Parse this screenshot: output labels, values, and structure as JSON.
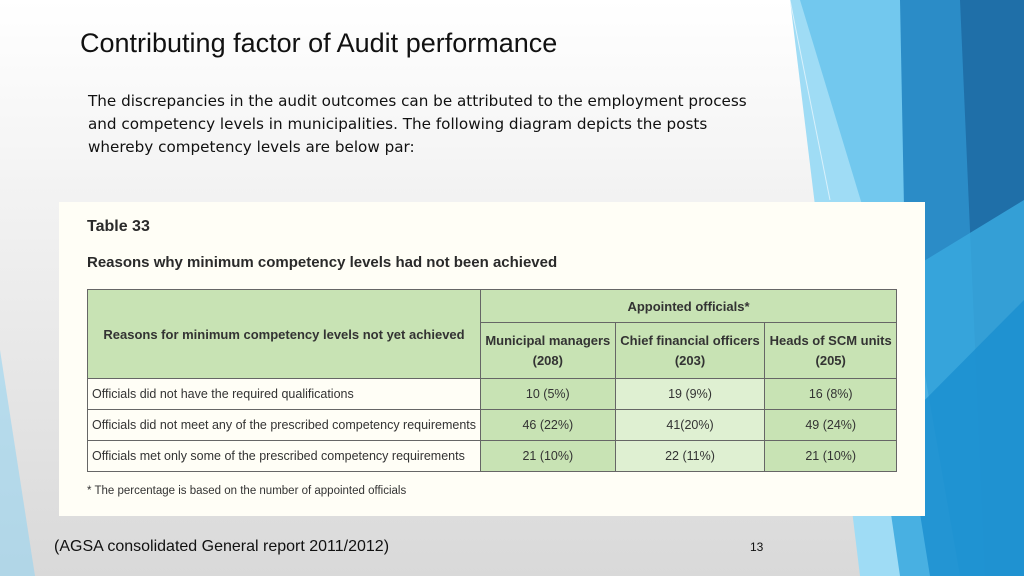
{
  "slide": {
    "title": "Contributing factor of  Audit performance",
    "intro": "The discrepancies in the audit outcomes can be attributed to the employment process and competency levels in municipalities. The following diagram depicts the posts whereby competency levels are below par:",
    "source": "(AGSA consolidated General report 2011/2012)",
    "page_number": "13"
  },
  "table": {
    "label": "Table 33",
    "caption": "Reasons why minimum competency levels had not been achieved",
    "reason_header": "Reasons for minimum competency levels not yet achieved",
    "group_header": "Appointed officials*",
    "columns": [
      {
        "name": "Municipal managers",
        "count": "(208)"
      },
      {
        "name": "Chief financial officers",
        "count": "(203)"
      },
      {
        "name": "Heads of SCM units",
        "count": "(205)"
      }
    ],
    "rows": [
      {
        "reason": "Officials did not have the required qualifications",
        "values": [
          "10 (5%)",
          "19 (9%)",
          "16 (8%)"
        ]
      },
      {
        "reason": "Officials did not meet any of the prescribed competency requirements",
        "values": [
          "46 (22%)",
          "41(20%)",
          "49 (24%)"
        ]
      },
      {
        "reason": "Officials met only some of the prescribed competency requirements",
        "values": [
          "21 (10%)",
          "22 (11%)",
          "21 (10%)"
        ]
      }
    ],
    "footnote": "* The percentage is based on the number of appointed officials"
  },
  "colors": {
    "table_header_green": "#c8e3b4",
    "table_cell_light_green": "#dff0d2",
    "decor_blue_dark": "#1f6fa8",
    "decor_blue_light": "#5bc0ea"
  }
}
